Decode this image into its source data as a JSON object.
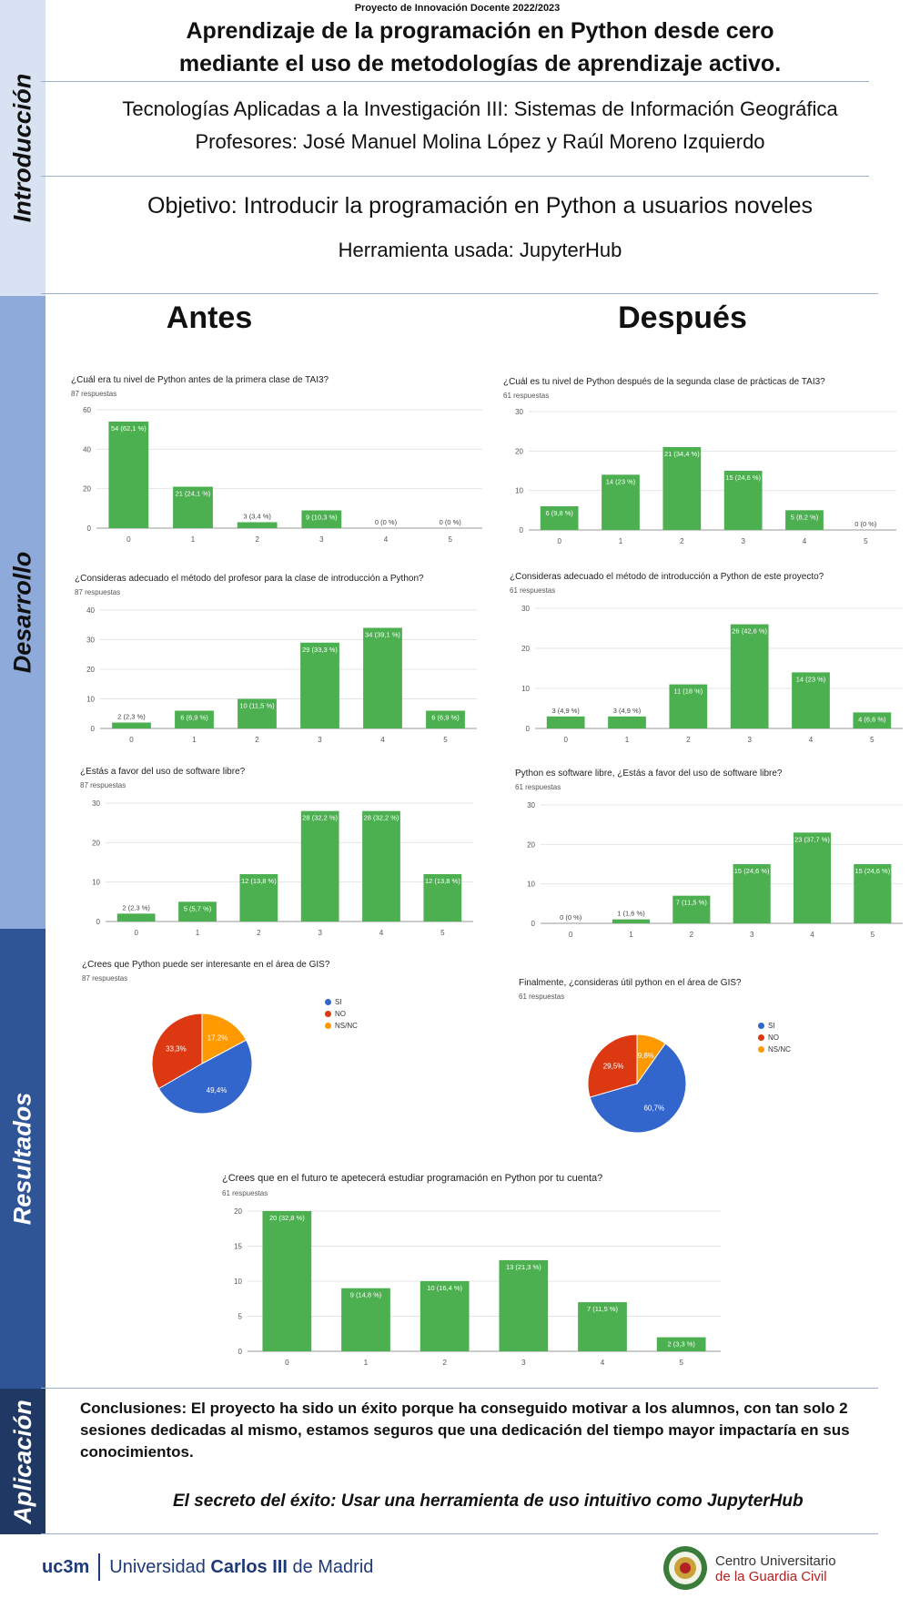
{
  "header": {
    "top_label": "Proyecto de Innovación Docente 2022/2023",
    "title_line1": "Aprendizaje de la programación en Python desde cero",
    "title_line2": "mediante el uso de metodologías de aprendizaje activo.",
    "course": "Tecnologías Aplicadas a la Investigación III: Sistemas de Información Geográfica",
    "professors": "Profesores: José Manuel Molina López y Raúl Moreno Izquierdo",
    "objective": "Objetivo: Introducir la programación en Python a usuarios noveles",
    "tool": "Herramienta usada: JupyterHub"
  },
  "sections": {
    "intro": "Introducción",
    "desarrollo": "Desarrollo",
    "resultados": "Resultados",
    "aplicacion": "Aplicación"
  },
  "colors": {
    "intro": "#d9e2f3",
    "desarrollo": "#8eaadb",
    "resultados": "#2f5597",
    "aplicacion": "#1f3864",
    "bar": "#4caf50",
    "si": "#3366cc",
    "no": "#dc3912",
    "nsnc": "#ff9900"
  },
  "columns": {
    "before": "Antes",
    "after": "Después"
  },
  "chart_data": [
    {
      "id": "c1",
      "type": "bar",
      "title": "¿Cuál era tu nivel de Python antes de la primera clase de TAI3?",
      "subtitle": "87 respuestas",
      "categories": [
        "0",
        "1",
        "2",
        "3",
        "4",
        "5"
      ],
      "values": [
        54,
        21,
        3,
        9,
        0,
        0
      ],
      "labels": [
        "54 (62,1 %)",
        "21 (24,1 %)",
        "3 (3,4 %)",
        "9 (10,3 %)",
        "0 (0 %)",
        "0 (0 %)"
      ],
      "ylim": [
        0,
        60
      ],
      "yticks": [
        0,
        20,
        40,
        60
      ]
    },
    {
      "id": "c2",
      "type": "bar",
      "title": "¿Cuál es tu nivel de Python después de la segunda clase de prácticas de TAI3?",
      "subtitle": "61 respuestas",
      "categories": [
        "0",
        "1",
        "2",
        "3",
        "4",
        "5"
      ],
      "values": [
        6,
        14,
        21,
        15,
        5,
        0
      ],
      "labels": [
        "6 (9,8 %)",
        "14 (23 %)",
        "21 (34,4 %)",
        "15 (24,6 %)",
        "5 (8,2 %)",
        "0 (0 %)"
      ],
      "ylim": [
        0,
        30
      ],
      "yticks": [
        0,
        10,
        20,
        30
      ]
    },
    {
      "id": "c3",
      "type": "bar",
      "title": "¿Consideras adecuado el método del profesor para la clase de introducción a Python?",
      "subtitle": "87 respuestas",
      "categories": [
        "0",
        "1",
        "2",
        "3",
        "4",
        "5"
      ],
      "values": [
        2,
        6,
        10,
        29,
        34,
        6
      ],
      "labels": [
        "2 (2,3 %)",
        "6 (6,9 %)",
        "10 (11,5 %)",
        "29 (33,3 %)",
        "34 (39,1 %)",
        "6 (6,9 %)"
      ],
      "ylim": [
        0,
        40
      ],
      "yticks": [
        0,
        10,
        20,
        30,
        40
      ]
    },
    {
      "id": "c4",
      "type": "bar",
      "title": "¿Consideras adecuado el método de introducción a Python de este proyecto?",
      "subtitle": "61 respuestas",
      "categories": [
        "0",
        "1",
        "2",
        "3",
        "4",
        "5"
      ],
      "values": [
        3,
        3,
        11,
        26,
        14,
        4
      ],
      "labels": [
        "3 (4,9 %)",
        "3 (4,9 %)",
        "11 (18 %)",
        "26 (42,6 %)",
        "14 (23 %)",
        "4 (6,6 %)"
      ],
      "ylim": [
        0,
        30
      ],
      "yticks": [
        0,
        10,
        20,
        30
      ]
    },
    {
      "id": "c5",
      "type": "bar",
      "title": "¿Estás a favor del uso de software libre?",
      "subtitle": "87 respuestas",
      "categories": [
        "0",
        "1",
        "2",
        "3",
        "4",
        "5"
      ],
      "values": [
        2,
        5,
        12,
        28,
        28,
        12
      ],
      "labels": [
        "2 (2,3 %)",
        "5 (5,7 %)",
        "12 (13,8 %)",
        "28 (32,2 %)",
        "28 (32,2 %)",
        "12 (13,8 %)"
      ],
      "ylim": [
        0,
        30
      ],
      "yticks": [
        0,
        10,
        20,
        30
      ]
    },
    {
      "id": "c6",
      "type": "bar",
      "title": "Python es software libre, ¿Estás a favor del uso de software libre?",
      "subtitle": "61 respuestas",
      "categories": [
        "0",
        "1",
        "2",
        "3",
        "4",
        "5"
      ],
      "values": [
        0,
        1,
        7,
        15,
        23,
        15
      ],
      "labels": [
        "0 (0 %)",
        "1 (1,6 %)",
        "7 (11,5 %)",
        "15 (24,6 %)",
        "23 (37,7 %)",
        "15 (24,6 %)"
      ],
      "ylim": [
        0,
        30
      ],
      "yticks": [
        0,
        10,
        20,
        30
      ]
    },
    {
      "id": "p1",
      "type": "pie",
      "title": "¿Crees que Python puede ser interesante en el área de GIS?",
      "subtitle": "87 respuestas",
      "legend": [
        "SI",
        "NO",
        "NS/NC"
      ],
      "values": [
        49.4,
        33.3,
        17.2
      ],
      "labels": [
        "49,4%",
        "33,3%",
        "17,2%"
      ]
    },
    {
      "id": "p2",
      "type": "pie",
      "title": "Finalmente, ¿consideras útil python en el área de GIS?",
      "subtitle": "61 respuestas",
      "legend": [
        "SI",
        "NO",
        "NS/NC"
      ],
      "values": [
        60.7,
        29.5,
        9.8
      ],
      "labels": [
        "60,7%",
        "29,5%",
        "9,8%"
      ]
    },
    {
      "id": "c7",
      "type": "bar",
      "title": "¿Crees que en el futuro te apetecerá estudiar programación en Python por tu cuenta?",
      "subtitle": "61 respuestas",
      "categories": [
        "0",
        "1",
        "2",
        "3",
        "4",
        "5"
      ],
      "values": [
        20,
        9,
        10,
        13,
        7,
        2
      ],
      "labels": [
        "20 (32,8 %)",
        "9 (14,8 %)",
        "10 (16,4 %)",
        "13 (21,3 %)",
        "7 (11,5 %)",
        "2 (3,3 %)"
      ],
      "ylim": [
        0,
        20
      ],
      "yticks": [
        0,
        5,
        10,
        15,
        20
      ]
    }
  ],
  "conclusion": "Conclusiones: El proyecto ha sido un éxito porque ha conseguido motivar  a los alumnos, con tan solo 2 sesiones dedicadas al mismo, estamos seguros que una dedicación del tiempo mayor impactaría en sus conocimientos.",
  "secret": "El secreto del éxito: Usar una herramienta de uso intuitivo como JupyterHub",
  "footer": {
    "uc3m_short": "uc3m",
    "uc3m_name_pre": "Universidad ",
    "uc3m_name_bold": "Carlos III",
    "uc3m_name_post": " de Madrid",
    "cugc_line1": "Centro Universitario",
    "cugc_line2": "de la Guardia Civil"
  }
}
